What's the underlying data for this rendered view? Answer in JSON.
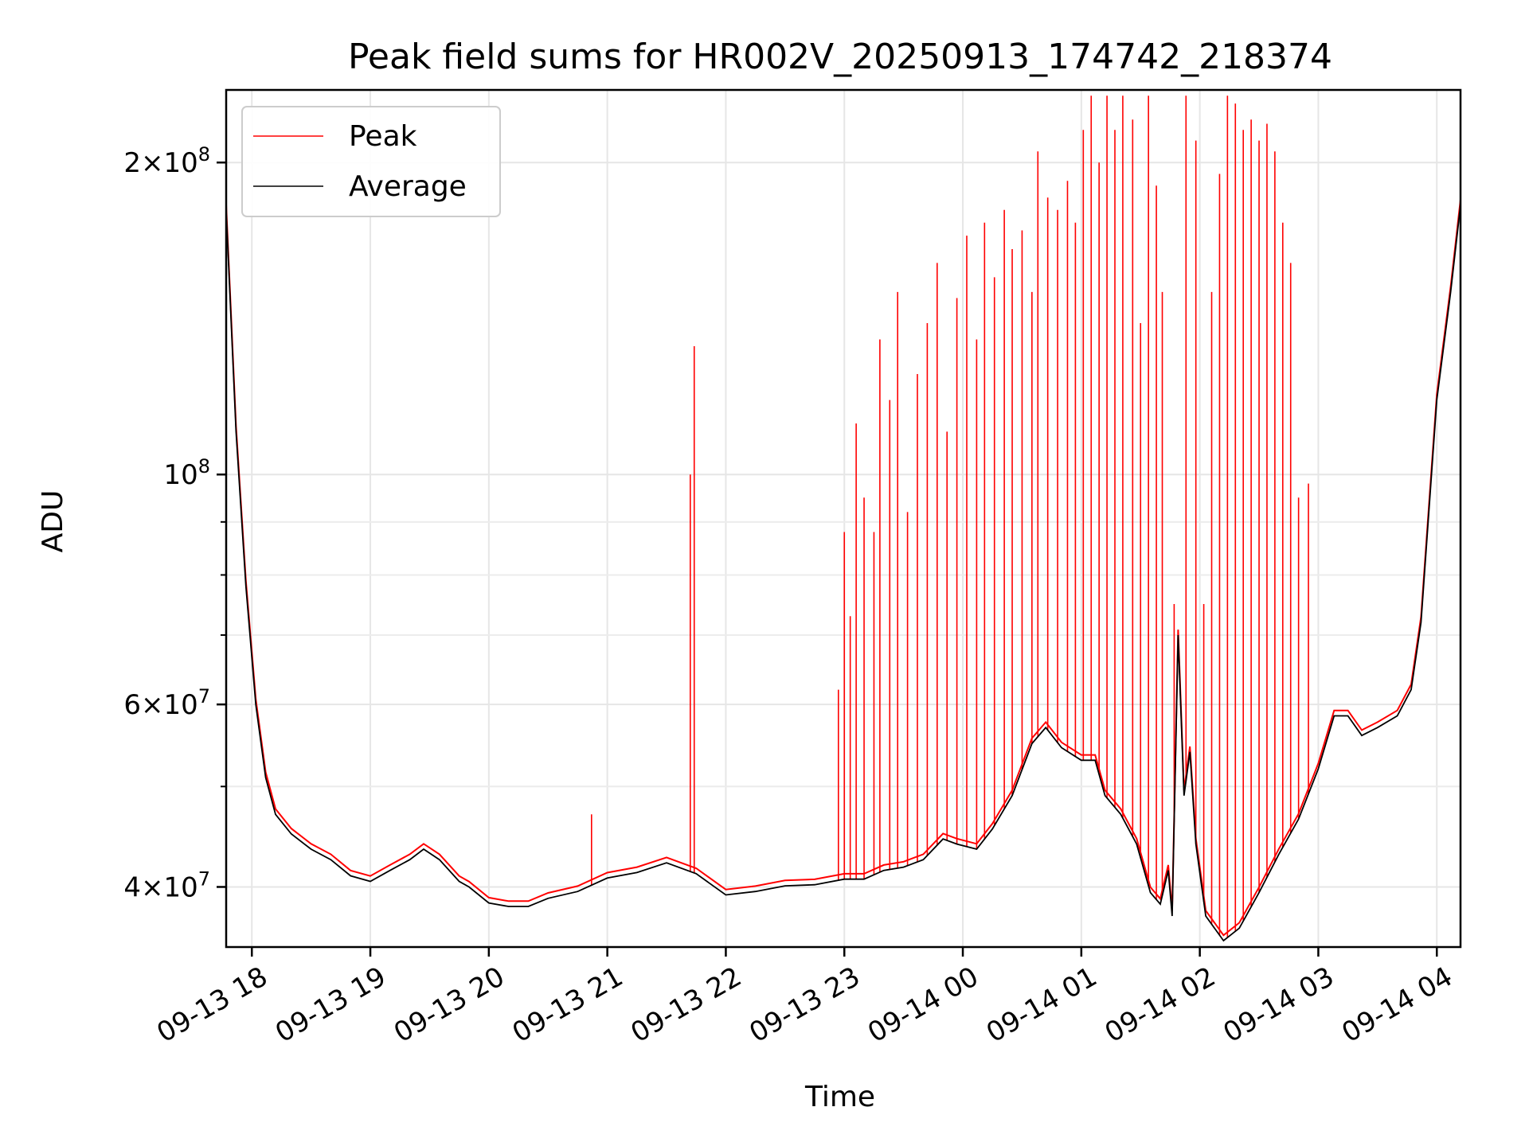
{
  "chart_data": {
    "type": "line",
    "title": "Peak field sums for HR002V_20250913_174742_218374",
    "xlabel": "Time",
    "ylabel": "ADU",
    "y_scale": "log",
    "ylim": [
      35000000,
      235000000
    ],
    "xlim": [
      "2025-09-13 17:47",
      "2025-09-14 04:12"
    ],
    "grid": true,
    "legend_position": "top-left",
    "x_ticks": [
      {
        "t": "2025-09-13 18:00",
        "label": "09-13 18"
      },
      {
        "t": "2025-09-13 19:00",
        "label": "09-13 19"
      },
      {
        "t": "2025-09-13 20:00",
        "label": "09-13 20"
      },
      {
        "t": "2025-09-13 21:00",
        "label": "09-13 21"
      },
      {
        "t": "2025-09-13 22:00",
        "label": "09-13 22"
      },
      {
        "t": "2025-09-13 23:00",
        "label": "09-13 23"
      },
      {
        "t": "2025-09-14 00:00",
        "label": "09-14 00"
      },
      {
        "t": "2025-09-14 01:00",
        "label": "09-14 01"
      },
      {
        "t": "2025-09-14 02:00",
        "label": "09-14 02"
      },
      {
        "t": "2025-09-14 03:00",
        "label": "09-14 03"
      },
      {
        "t": "2025-09-14 04:00",
        "label": "09-14 04"
      }
    ],
    "y_ticks": [
      {
        "value": 40000000,
        "mantissa": "4",
        "exp": "7"
      },
      {
        "value": 60000000,
        "mantissa": "6",
        "exp": "7"
      },
      {
        "value": 100000000,
        "mantissa": "",
        "exp": "8"
      },
      {
        "value": 200000000,
        "mantissa": "2",
        "exp": "8"
      }
    ],
    "y_minor_ticks": [
      50000000,
      70000000,
      80000000,
      90000000
    ],
    "series": [
      {
        "name": "Average",
        "color": "#000000",
        "points": [
          [
            "2025-09-13 17:47",
            180000000
          ],
          [
            "2025-09-13 17:52",
            110000000
          ],
          [
            "2025-09-13 17:57",
            78000000
          ],
          [
            "2025-09-13 18:02",
            60000000
          ],
          [
            "2025-09-13 18:07",
            51000000
          ],
          [
            "2025-09-13 18:12",
            47000000
          ],
          [
            "2025-09-13 18:20",
            45000000
          ],
          [
            "2025-09-13 18:30",
            43500000
          ],
          [
            "2025-09-13 18:40",
            42500000
          ],
          [
            "2025-09-13 18:50",
            41000000
          ],
          [
            "2025-09-13 19:00",
            40500000
          ],
          [
            "2025-09-13 19:10",
            41500000
          ],
          [
            "2025-09-13 19:20",
            42500000
          ],
          [
            "2025-09-13 19:27",
            43500000
          ],
          [
            "2025-09-13 19:35",
            42500000
          ],
          [
            "2025-09-13 19:45",
            40500000
          ],
          [
            "2025-09-13 19:50",
            40000000
          ],
          [
            "2025-09-13 20:00",
            38600000
          ],
          [
            "2025-09-13 20:10",
            38300000
          ],
          [
            "2025-09-13 20:20",
            38300000
          ],
          [
            "2025-09-13 20:30",
            39000000
          ],
          [
            "2025-09-13 20:45",
            39600000
          ],
          [
            "2025-09-13 21:00",
            40800000
          ],
          [
            "2025-09-13 21:15",
            41300000
          ],
          [
            "2025-09-13 21:30",
            42200000
          ],
          [
            "2025-09-13 21:45",
            41200000
          ],
          [
            "2025-09-13 22:00",
            39300000
          ],
          [
            "2025-09-13 22:15",
            39600000
          ],
          [
            "2025-09-13 22:30",
            40100000
          ],
          [
            "2025-09-13 22:45",
            40200000
          ],
          [
            "2025-09-13 23:00",
            40700000
          ],
          [
            "2025-09-13 23:10",
            40700000
          ],
          [
            "2025-09-13 23:20",
            41500000
          ],
          [
            "2025-09-13 23:30",
            41800000
          ],
          [
            "2025-09-13 23:40",
            42500000
          ],
          [
            "2025-09-13 23:50",
            44500000
          ],
          [
            "2025-09-13 23:57",
            44000000
          ],
          [
            "2025-09-14 00:07",
            43500000
          ],
          [
            "2025-09-14 00:15",
            45500000
          ],
          [
            "2025-09-14 00:25",
            49000000
          ],
          [
            "2025-09-14 00:35",
            55000000
          ],
          [
            "2025-09-14 00:42",
            57000000
          ],
          [
            "2025-09-14 00:50",
            54500000
          ],
          [
            "2025-09-14 01:00",
            53000000
          ],
          [
            "2025-09-14 01:07",
            53000000
          ],
          [
            "2025-09-14 01:12",
            49000000
          ],
          [
            "2025-09-14 01:20",
            47000000
          ],
          [
            "2025-09-14 01:28",
            44000000
          ],
          [
            "2025-09-14 01:35",
            39500000
          ],
          [
            "2025-09-14 01:40",
            38500000
          ],
          [
            "2025-09-14 01:44",
            41500000
          ],
          [
            "2025-09-14 01:46",
            37500000
          ],
          [
            "2025-09-14 01:49",
            70000000
          ],
          [
            "2025-09-14 01:52",
            49000000
          ],
          [
            "2025-09-14 01:55",
            54000000
          ],
          [
            "2025-09-14 01:58",
            44000000
          ],
          [
            "2025-09-14 02:03",
            37500000
          ],
          [
            "2025-09-14 02:12",
            35500000
          ],
          [
            "2025-09-14 02:20",
            36500000
          ],
          [
            "2025-09-14 02:30",
            39500000
          ],
          [
            "2025-09-14 02:40",
            43000000
          ],
          [
            "2025-09-14 02:50",
            46500000
          ],
          [
            "2025-09-14 03:00",
            52000000
          ],
          [
            "2025-09-14 03:08",
            58500000
          ],
          [
            "2025-09-14 03:15",
            58500000
          ],
          [
            "2025-09-14 03:22",
            56000000
          ],
          [
            "2025-09-14 03:30",
            57000000
          ],
          [
            "2025-09-14 03:40",
            58500000
          ],
          [
            "2025-09-14 03:47",
            62000000
          ],
          [
            "2025-09-14 03:52",
            72000000
          ],
          [
            "2025-09-14 04:00",
            118000000
          ],
          [
            "2025-09-14 04:07",
            150000000
          ],
          [
            "2025-09-14 04:12",
            182000000
          ]
        ]
      },
      {
        "name": "Peak",
        "color": "#ff0000",
        "spikes": [
          [
            "2025-09-13 21:42",
            100000000
          ],
          [
            "2025-09-13 21:44",
            133000000
          ],
          [
            "2025-09-13 20:52",
            47000000
          ],
          [
            "2025-09-13 22:57",
            62000000
          ],
          [
            "2025-09-13 23:00",
            88000000
          ],
          [
            "2025-09-13 23:03",
            73000000
          ],
          [
            "2025-09-13 23:06",
            112000000
          ],
          [
            "2025-09-13 23:10",
            95000000
          ],
          [
            "2025-09-13 23:15",
            88000000
          ],
          [
            "2025-09-13 23:18",
            135000000
          ],
          [
            "2025-09-13 23:23",
            118000000
          ],
          [
            "2025-09-13 23:27",
            150000000
          ],
          [
            "2025-09-13 23:32",
            92000000
          ],
          [
            "2025-09-13 23:37",
            125000000
          ],
          [
            "2025-09-13 23:42",
            140000000
          ],
          [
            "2025-09-13 23:47",
            160000000
          ],
          [
            "2025-09-13 23:52",
            110000000
          ],
          [
            "2025-09-13 23:57",
            148000000
          ],
          [
            "2025-09-14 00:02",
            170000000
          ],
          [
            "2025-09-14 00:07",
            135000000
          ],
          [
            "2025-09-14 00:11",
            175000000
          ],
          [
            "2025-09-14 00:16",
            155000000
          ],
          [
            "2025-09-14 00:21",
            180000000
          ],
          [
            "2025-09-14 00:25",
            165000000
          ],
          [
            "2025-09-14 00:30",
            172000000
          ],
          [
            "2025-09-14 00:35",
            150000000
          ],
          [
            "2025-09-14 00:38",
            205000000
          ],
          [
            "2025-09-14 00:43",
            185000000
          ],
          [
            "2025-09-14 00:48",
            180000000
          ],
          [
            "2025-09-14 00:53",
            192000000
          ],
          [
            "2025-09-14 00:57",
            175000000
          ],
          [
            "2025-09-14 01:01",
            215000000
          ],
          [
            "2025-09-14 01:05",
            232000000
          ],
          [
            "2025-09-14 01:09",
            200000000
          ],
          [
            "2025-09-14 01:13",
            232000000
          ],
          [
            "2025-09-14 01:17",
            215000000
          ],
          [
            "2025-09-14 01:21",
            232000000
          ],
          [
            "2025-09-14 01:26",
            220000000
          ],
          [
            "2025-09-14 01:30",
            140000000
          ],
          [
            "2025-09-14 01:34",
            232000000
          ],
          [
            "2025-09-14 01:38",
            190000000
          ],
          [
            "2025-09-14 01:41",
            150000000
          ],
          [
            "2025-09-14 01:47",
            75000000
          ],
          [
            "2025-09-14 01:53",
            232000000
          ],
          [
            "2025-09-14 01:58",
            210000000
          ],
          [
            "2025-09-14 02:02",
            75000000
          ],
          [
            "2025-09-14 02:06",
            150000000
          ],
          [
            "2025-09-14 02:10",
            195000000
          ],
          [
            "2025-09-14 02:14",
            232000000
          ],
          [
            "2025-09-14 02:18",
            228000000
          ],
          [
            "2025-09-14 02:22",
            215000000
          ],
          [
            "2025-09-14 02:26",
            220000000
          ],
          [
            "2025-09-14 02:30",
            210000000
          ],
          [
            "2025-09-14 02:34",
            218000000
          ],
          [
            "2025-09-14 02:38",
            205000000
          ],
          [
            "2025-09-14 02:42",
            175000000
          ],
          [
            "2025-09-14 02:46",
            160000000
          ],
          [
            "2025-09-14 02:50",
            95000000
          ],
          [
            "2025-09-14 02:55",
            98000000
          ]
        ]
      }
    ]
  }
}
